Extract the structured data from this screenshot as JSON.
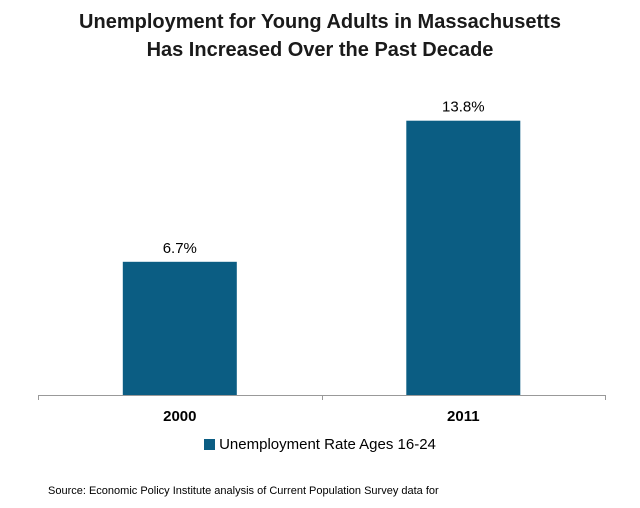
{
  "chart_data": {
    "type": "bar",
    "title_lines": [
      "Unemployment for Young Adults in Massachusetts",
      "Has Increased Over the Past Decade"
    ],
    "categories": [
      "2000",
      "2011"
    ],
    "series": [
      {
        "name": "Unemployment Rate Ages 16-24",
        "values": [
          6.7,
          13.8
        ],
        "data_labels": [
          "6.7%",
          "13.8%"
        ]
      }
    ],
    "ylim": [
      0,
      16
    ],
    "grid": false,
    "legend_position": "bottom",
    "colors": {
      "bar": "#0B5D83",
      "axis": "#999999"
    }
  },
  "source_note": "Source: Economic Policy Institute  analysis of Current Population Survey data for"
}
